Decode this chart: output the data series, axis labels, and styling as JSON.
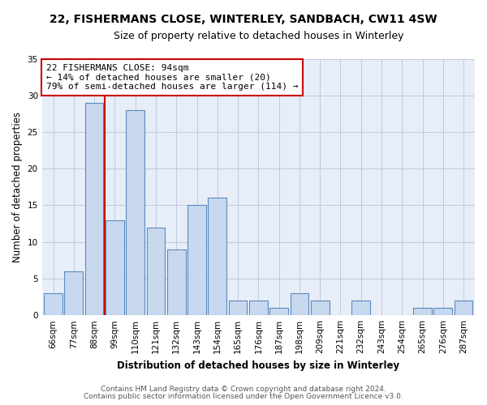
{
  "title": "22, FISHERMANS CLOSE, WINTERLEY, SANDBACH, CW11 4SW",
  "subtitle": "Size of property relative to detached houses in Winterley",
  "xlabel": "Distribution of detached houses by size in Winterley",
  "ylabel": "Number of detached properties",
  "bin_labels": [
    "66sqm",
    "77sqm",
    "88sqm",
    "99sqm",
    "110sqm",
    "121sqm",
    "132sqm",
    "143sqm",
    "154sqm",
    "165sqm",
    "176sqm",
    "187sqm",
    "198sqm",
    "209sqm",
    "221sqm",
    "232sqm",
    "243sqm",
    "254sqm",
    "265sqm",
    "276sqm",
    "287sqm"
  ],
  "bin_values": [
    3,
    6,
    29,
    13,
    28,
    12,
    9,
    15,
    16,
    2,
    2,
    1,
    3,
    2,
    0,
    2,
    0,
    0,
    1,
    1,
    2
  ],
  "bar_color": "#c8d8ef",
  "bar_edge_color": "#5a8abf",
  "property_line_color": "#cc0000",
  "ylim": [
    0,
    35
  ],
  "yticks": [
    0,
    5,
    10,
    15,
    20,
    25,
    30,
    35
  ],
  "annotation_text": "22 FISHERMANS CLOSE: 94sqm\n← 14% of detached houses are smaller (20)\n79% of semi-detached houses are larger (114) →",
  "annotation_box_edge_color": "#cc0000",
  "footer_line1": "Contains HM Land Registry data © Crown copyright and database right 2024.",
  "footer_line2": "Contains public sector information licensed under the Open Government Licence v3.0.",
  "bg_color": "#ffffff",
  "plot_bg_color": "#e8eef8",
  "grid_color": "#b8c4d8",
  "title_fontsize": 10,
  "subtitle_fontsize": 9,
  "axis_label_fontsize": 8.5,
  "tick_fontsize": 7.5,
  "annotation_fontsize": 8,
  "footer_fontsize": 6.5
}
